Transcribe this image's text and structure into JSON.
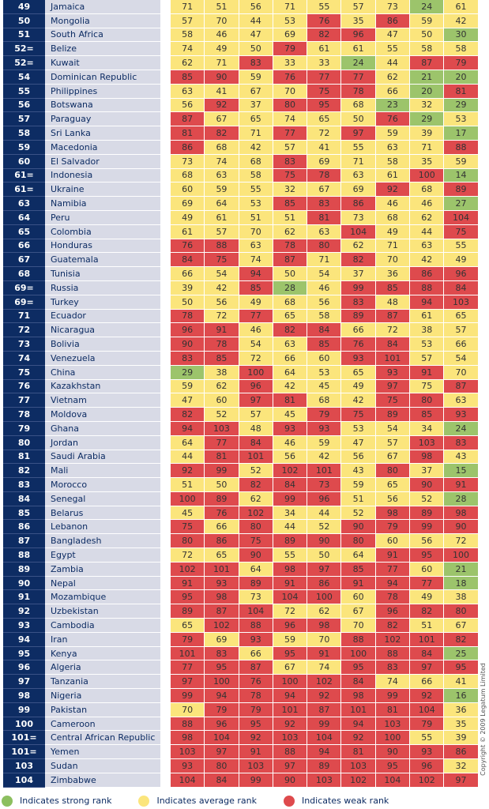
{
  "rows": [
    {
      "rank": "49",
      "country": "Jamaica",
      "values": [
        71,
        51,
        56,
        71,
        55,
        57,
        73,
        24,
        61
      ],
      "levels": [
        "a",
        "a",
        "a",
        "a",
        "a",
        "a",
        "a",
        "s",
        "a"
      ]
    },
    {
      "rank": "50",
      "country": "Mongolia",
      "values": [
        57,
        70,
        44,
        53,
        76,
        35,
        86,
        59,
        42
      ],
      "levels": [
        "a",
        "a",
        "a",
        "a",
        "w",
        "a",
        "w",
        "a",
        "a"
      ]
    },
    {
      "rank": "51",
      "country": "South Africa",
      "values": [
        58,
        46,
        47,
        69,
        82,
        96,
        47,
        50,
        30
      ],
      "levels": [
        "a",
        "a",
        "a",
        "a",
        "w",
        "w",
        "a",
        "a",
        "s"
      ]
    },
    {
      "rank": "52=",
      "country": "Belize",
      "values": [
        74,
        49,
        50,
        79,
        61,
        61,
        55,
        58,
        58
      ],
      "levels": [
        "a",
        "a",
        "a",
        "w",
        "a",
        "a",
        "a",
        "a",
        "a"
      ]
    },
    {
      "rank": "52=",
      "country": "Kuwait",
      "values": [
        62,
        71,
        83,
        33,
        33,
        24,
        44,
        87,
        79
      ],
      "levels": [
        "a",
        "a",
        "w",
        "a",
        "a",
        "s",
        "a",
        "w",
        "w"
      ]
    },
    {
      "rank": "54",
      "country": "Dominican Republic",
      "values": [
        85,
        90,
        59,
        76,
        77,
        77,
        62,
        21,
        20
      ],
      "levels": [
        "w",
        "w",
        "a",
        "w",
        "w",
        "w",
        "a",
        "s",
        "s"
      ]
    },
    {
      "rank": "55",
      "country": "Philippines",
      "values": [
        63,
        41,
        67,
        70,
        75,
        78,
        66,
        20,
        81
      ],
      "levels": [
        "a",
        "a",
        "a",
        "a",
        "w",
        "w",
        "a",
        "s",
        "w"
      ]
    },
    {
      "rank": "56",
      "country": "Botswana",
      "values": [
        56,
        92,
        37,
        80,
        95,
        68,
        23,
        32,
        29
      ],
      "levels": [
        "a",
        "w",
        "a",
        "w",
        "w",
        "a",
        "s",
        "a",
        "s"
      ]
    },
    {
      "rank": "57",
      "country": "Paraguay",
      "values": [
        87,
        67,
        65,
        74,
        65,
        50,
        76,
        29,
        53
      ],
      "levels": [
        "w",
        "a",
        "a",
        "a",
        "a",
        "a",
        "w",
        "s",
        "a"
      ]
    },
    {
      "rank": "58",
      "country": "Sri Lanka",
      "values": [
        81,
        82,
        71,
        77,
        72,
        97,
        59,
        39,
        17
      ],
      "levels": [
        "w",
        "w",
        "a",
        "w",
        "a",
        "w",
        "a",
        "a",
        "s"
      ]
    },
    {
      "rank": "59",
      "country": "Macedonia",
      "values": [
        86,
        68,
        42,
        57,
        41,
        55,
        63,
        71,
        88
      ],
      "levels": [
        "w",
        "a",
        "a",
        "a",
        "a",
        "a",
        "a",
        "a",
        "w"
      ]
    },
    {
      "rank": "60",
      "country": "El Salvador",
      "values": [
        73,
        74,
        68,
        83,
        69,
        71,
        58,
        35,
        59
      ],
      "levels": [
        "a",
        "a",
        "a",
        "w",
        "a",
        "a",
        "a",
        "a",
        "a"
      ]
    },
    {
      "rank": "61=",
      "country": "Indonesia",
      "values": [
        68,
        63,
        58,
        75,
        78,
        63,
        61,
        100,
        14
      ],
      "levels": [
        "a",
        "a",
        "a",
        "w",
        "w",
        "a",
        "a",
        "w",
        "s"
      ]
    },
    {
      "rank": "61=",
      "country": "Ukraine",
      "values": [
        60,
        59,
        55,
        32,
        67,
        69,
        92,
        68,
        89
      ],
      "levels": [
        "a",
        "a",
        "a",
        "a",
        "a",
        "a",
        "w",
        "a",
        "w"
      ]
    },
    {
      "rank": "63",
      "country": "Namibia",
      "values": [
        69,
        64,
        53,
        85,
        83,
        86,
        46,
        46,
        27
      ],
      "levels": [
        "a",
        "a",
        "a",
        "w",
        "w",
        "w",
        "a",
        "a",
        "s"
      ]
    },
    {
      "rank": "64",
      "country": "Peru",
      "values": [
        49,
        61,
        51,
        51,
        81,
        73,
        68,
        62,
        104
      ],
      "levels": [
        "a",
        "a",
        "a",
        "a",
        "w",
        "a",
        "a",
        "a",
        "w"
      ]
    },
    {
      "rank": "65",
      "country": "Colombia",
      "values": [
        61,
        57,
        70,
        62,
        63,
        104,
        49,
        44,
        75
      ],
      "levels": [
        "a",
        "a",
        "a",
        "a",
        "a",
        "w",
        "a",
        "a",
        "w"
      ]
    },
    {
      "rank": "66",
      "country": "Honduras",
      "values": [
        76,
        88,
        63,
        78,
        80,
        62,
        71,
        63,
        55
      ],
      "levels": [
        "w",
        "w",
        "a",
        "w",
        "w",
        "a",
        "a",
        "a",
        "a"
      ]
    },
    {
      "rank": "67",
      "country": "Guatemala",
      "values": [
        84,
        75,
        74,
        87,
        71,
        82,
        70,
        42,
        49
      ],
      "levels": [
        "w",
        "w",
        "a",
        "w",
        "a",
        "w",
        "a",
        "a",
        "a"
      ]
    },
    {
      "rank": "68",
      "country": "Tunisia",
      "values": [
        66,
        54,
        94,
        50,
        54,
        37,
        36,
        86,
        96
      ],
      "levels": [
        "a",
        "a",
        "w",
        "a",
        "a",
        "a",
        "a",
        "w",
        "w"
      ]
    },
    {
      "rank": "69=",
      "country": "Russia",
      "values": [
        39,
        42,
        85,
        28,
        46,
        99,
        85,
        88,
        84
      ],
      "levels": [
        "a",
        "a",
        "w",
        "s",
        "a",
        "w",
        "w",
        "w",
        "w"
      ]
    },
    {
      "rank": "69=",
      "country": "Turkey",
      "values": [
        50,
        56,
        49,
        68,
        56,
        83,
        48,
        94,
        103
      ],
      "levels": [
        "a",
        "a",
        "a",
        "a",
        "a",
        "w",
        "a",
        "w",
        "w"
      ]
    },
    {
      "rank": "71",
      "country": "Ecuador",
      "values": [
        78,
        72,
        77,
        65,
        58,
        89,
        87,
        61,
        65
      ],
      "levels": [
        "w",
        "a",
        "w",
        "a",
        "a",
        "w",
        "w",
        "a",
        "a"
      ]
    },
    {
      "rank": "72",
      "country": "Nicaragua",
      "values": [
        96,
        91,
        46,
        82,
        84,
        66,
        72,
        38,
        57
      ],
      "levels": [
        "w",
        "w",
        "a",
        "w",
        "w",
        "a",
        "a",
        "a",
        "a"
      ]
    },
    {
      "rank": "73",
      "country": "Bolivia",
      "values": [
        90,
        78,
        54,
        63,
        85,
        76,
        84,
        53,
        66
      ],
      "levels": [
        "w",
        "w",
        "a",
        "a",
        "w",
        "w",
        "w",
        "a",
        "a"
      ]
    },
    {
      "rank": "74",
      "country": "Venezuela",
      "values": [
        83,
        85,
        72,
        66,
        60,
        93,
        101,
        57,
        54
      ],
      "levels": [
        "w",
        "w",
        "a",
        "a",
        "a",
        "w",
        "w",
        "a",
        "a"
      ]
    },
    {
      "rank": "75",
      "country": "China",
      "values": [
        29,
        38,
        100,
        64,
        53,
        65,
        93,
        91,
        70
      ],
      "levels": [
        "s",
        "a",
        "w",
        "a",
        "a",
        "a",
        "w",
        "w",
        "a"
      ]
    },
    {
      "rank": "76",
      "country": "Kazakhstan",
      "values": [
        59,
        62,
        96,
        42,
        45,
        49,
        97,
        75,
        87
      ],
      "levels": [
        "a",
        "a",
        "w",
        "a",
        "a",
        "a",
        "w",
        "a",
        "w"
      ]
    },
    {
      "rank": "77",
      "country": "Vietnam",
      "values": [
        47,
        60,
        97,
        81,
        68,
        42,
        75,
        80,
        63
      ],
      "levels": [
        "a",
        "a",
        "w",
        "w",
        "a",
        "a",
        "w",
        "w",
        "a"
      ]
    },
    {
      "rank": "78",
      "country": "Moldova",
      "values": [
        82,
        52,
        57,
        45,
        79,
        75,
        89,
        85,
        93
      ],
      "levels": [
        "w",
        "a",
        "a",
        "a",
        "w",
        "w",
        "w",
        "w",
        "w"
      ]
    },
    {
      "rank": "79",
      "country": "Ghana",
      "values": [
        94,
        103,
        48,
        93,
        93,
        53,
        54,
        34,
        24
      ],
      "levels": [
        "w",
        "w",
        "a",
        "w",
        "w",
        "a",
        "a",
        "a",
        "s"
      ]
    },
    {
      "rank": "80",
      "country": "Jordan",
      "values": [
        64,
        77,
        84,
        46,
        59,
        47,
        57,
        103,
        83
      ],
      "levels": [
        "a",
        "w",
        "w",
        "a",
        "a",
        "a",
        "a",
        "w",
        "w"
      ]
    },
    {
      "rank": "81",
      "country": "Saudi Arabia",
      "values": [
        44,
        81,
        101,
        56,
        42,
        56,
        67,
        98,
        43
      ],
      "levels": [
        "a",
        "w",
        "w",
        "a",
        "a",
        "a",
        "a",
        "w",
        "a"
      ]
    },
    {
      "rank": "82",
      "country": "Mali",
      "values": [
        92,
        99,
        52,
        102,
        101,
        43,
        80,
        37,
        15
      ],
      "levels": [
        "w",
        "w",
        "a",
        "w",
        "w",
        "a",
        "w",
        "a",
        "s"
      ]
    },
    {
      "rank": "83",
      "country": "Morocco",
      "values": [
        51,
        50,
        82,
        84,
        73,
        59,
        65,
        90,
        91
      ],
      "levels": [
        "a",
        "a",
        "w",
        "w",
        "w",
        "a",
        "a",
        "w",
        "w"
      ]
    },
    {
      "rank": "84",
      "country": "Senegal",
      "values": [
        100,
        89,
        62,
        99,
        96,
        51,
        56,
        52,
        28
      ],
      "levels": [
        "w",
        "w",
        "a",
        "w",
        "w",
        "a",
        "a",
        "a",
        "s"
      ]
    },
    {
      "rank": "85",
      "country": "Belarus",
      "values": [
        45,
        76,
        102,
        34,
        44,
        52,
        98,
        89,
        98
      ],
      "levels": [
        "a",
        "w",
        "w",
        "a",
        "a",
        "a",
        "w",
        "w",
        "w"
      ]
    },
    {
      "rank": "86",
      "country": "Lebanon",
      "values": [
        75,
        66,
        80,
        44,
        52,
        90,
        79,
        99,
        90
      ],
      "levels": [
        "w",
        "a",
        "w",
        "a",
        "a",
        "w",
        "w",
        "w",
        "w"
      ]
    },
    {
      "rank": "87",
      "country": "Bangladesh",
      "values": [
        80,
        86,
        75,
        89,
        90,
        80,
        60,
        56,
        72
      ],
      "levels": [
        "w",
        "w",
        "w",
        "w",
        "w",
        "w",
        "a",
        "a",
        "a"
      ]
    },
    {
      "rank": "88",
      "country": "Egypt",
      "values": [
        72,
        65,
        90,
        55,
        50,
        64,
        91,
        95,
        100
      ],
      "levels": [
        "a",
        "a",
        "w",
        "a",
        "a",
        "a",
        "w",
        "w",
        "w"
      ]
    },
    {
      "rank": "89",
      "country": "Zambia",
      "values": [
        102,
        101,
        64,
        98,
        97,
        85,
        77,
        60,
        21
      ],
      "levels": [
        "w",
        "w",
        "a",
        "w",
        "w",
        "w",
        "w",
        "a",
        "s"
      ]
    },
    {
      "rank": "90",
      "country": "Nepal",
      "values": [
        91,
        93,
        89,
        91,
        86,
        91,
        94,
        77,
        18
      ],
      "levels": [
        "w",
        "w",
        "w",
        "w",
        "w",
        "w",
        "w",
        "w",
        "s"
      ]
    },
    {
      "rank": "91",
      "country": "Mozambique",
      "values": [
        95,
        98,
        73,
        104,
        100,
        60,
        78,
        49,
        38
      ],
      "levels": [
        "w",
        "w",
        "a",
        "w",
        "w",
        "a",
        "w",
        "a",
        "a"
      ]
    },
    {
      "rank": "92",
      "country": "Uzbekistan",
      "values": [
        89,
        87,
        104,
        72,
        62,
        67,
        96,
        82,
        80
      ],
      "levels": [
        "w",
        "w",
        "w",
        "a",
        "a",
        "a",
        "w",
        "w",
        "w"
      ]
    },
    {
      "rank": "93",
      "country": "Cambodia",
      "values": [
        65,
        102,
        88,
        96,
        98,
        70,
        82,
        51,
        67
      ],
      "levels": [
        "a",
        "w",
        "w",
        "w",
        "w",
        "a",
        "w",
        "a",
        "a"
      ]
    },
    {
      "rank": "94",
      "country": "Iran",
      "values": [
        79,
        69,
        93,
        59,
        70,
        88,
        102,
        101,
        82
      ],
      "levels": [
        "w",
        "a",
        "w",
        "a",
        "a",
        "w",
        "w",
        "w",
        "w"
      ]
    },
    {
      "rank": "95",
      "country": "Kenya",
      "values": [
        101,
        83,
        66,
        95,
        91,
        100,
        88,
        84,
        25
      ],
      "levels": [
        "w",
        "w",
        "a",
        "w",
        "w",
        "w",
        "w",
        "w",
        "s"
      ]
    },
    {
      "rank": "96",
      "country": "Algeria",
      "values": [
        77,
        95,
        87,
        67,
        74,
        95,
        83,
        97,
        95
      ],
      "levels": [
        "w",
        "w",
        "w",
        "a",
        "a",
        "w",
        "w",
        "w",
        "w"
      ]
    },
    {
      "rank": "97",
      "country": "Tanzania",
      "values": [
        97,
        100,
        76,
        100,
        102,
        84,
        74,
        66,
        41
      ],
      "levels": [
        "w",
        "w",
        "w",
        "w",
        "w",
        "w",
        "a",
        "a",
        "a"
      ]
    },
    {
      "rank": "98",
      "country": "Nigeria",
      "values": [
        99,
        94,
        78,
        94,
        92,
        98,
        99,
        92,
        16
      ],
      "levels": [
        "w",
        "w",
        "w",
        "w",
        "w",
        "w",
        "w",
        "w",
        "s"
      ]
    },
    {
      "rank": "99",
      "country": "Pakistan",
      "values": [
        70,
        79,
        79,
        101,
        87,
        101,
        81,
        104,
        36
      ],
      "levels": [
        "a",
        "w",
        "w",
        "w",
        "w",
        "w",
        "w",
        "w",
        "a"
      ]
    },
    {
      "rank": "100",
      "country": "Cameroon",
      "values": [
        88,
        96,
        95,
        92,
        99,
        94,
        103,
        79,
        35
      ],
      "levels": [
        "w",
        "w",
        "w",
        "w",
        "w",
        "w",
        "w",
        "w",
        "a"
      ]
    },
    {
      "rank": "101=",
      "country": "Central African Republic",
      "values": [
        98,
        104,
        92,
        103,
        104,
        92,
        100,
        55,
        39
      ],
      "levels": [
        "w",
        "w",
        "w",
        "w",
        "w",
        "w",
        "w",
        "a",
        "a"
      ]
    },
    {
      "rank": "101=",
      "country": "Yemen",
      "values": [
        103,
        97,
        91,
        88,
        94,
        81,
        90,
        93,
        86
      ],
      "levels": [
        "w",
        "w",
        "w",
        "w",
        "w",
        "w",
        "w",
        "w",
        "w"
      ]
    },
    {
      "rank": "103",
      "country": "Sudan",
      "values": [
        93,
        80,
        103,
        97,
        89,
        103,
        95,
        96,
        32
      ],
      "levels": [
        "w",
        "w",
        "w",
        "w",
        "w",
        "w",
        "w",
        "w",
        "a"
      ]
    },
    {
      "rank": "104",
      "country": "Zimbabwe",
      "values": [
        104,
        84,
        99,
        90,
        103,
        102,
        104,
        102,
        97
      ],
      "levels": [
        "w",
        "w",
        "w",
        "w",
        "w",
        "w",
        "w",
        "w",
        "w"
      ]
    }
  ],
  "legend": [
    {
      "label": "Indicates strong rank",
      "color": "#8cbf5f"
    },
    {
      "label": "Indicates average rank",
      "color": "#fbe57c"
    },
    {
      "label": "Indicates weak rank",
      "color": "#de4a4d"
    }
  ],
  "copyright": "Copyright © 2009 Legatum Limited"
}
